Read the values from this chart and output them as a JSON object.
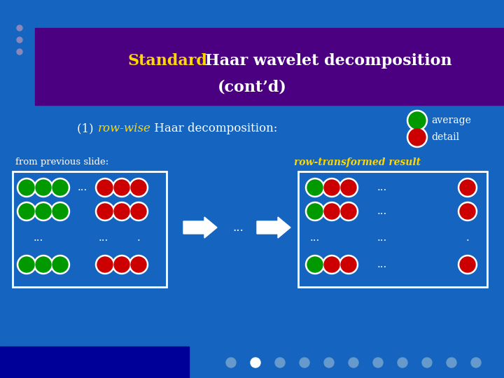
{
  "bg_color": "#1565C0",
  "title_bg_color": "#4B0082",
  "title_standard_color": "#FFD700",
  "title_main_color": "#FFFFFF",
  "subtitle_color": "#FFFFFF",
  "subtitle_rowwise_color": "#FFD700",
  "legend_average_label": "average",
  "legend_detail_label": "detail",
  "from_label": "from previous slide:",
  "from_color": "#FFFFFF",
  "result_label": "row-transformed result",
  "result_color": "#FFD700",
  "green_color": "#009900",
  "red_color": "#CC0000",
  "white_color": "#FFFFFF",
  "dots_color": "#FFFFFF",
  "box_color": "#FFFFFF",
  "nav_dot_color": "#6699CC",
  "nav_bar_color": "#000099"
}
